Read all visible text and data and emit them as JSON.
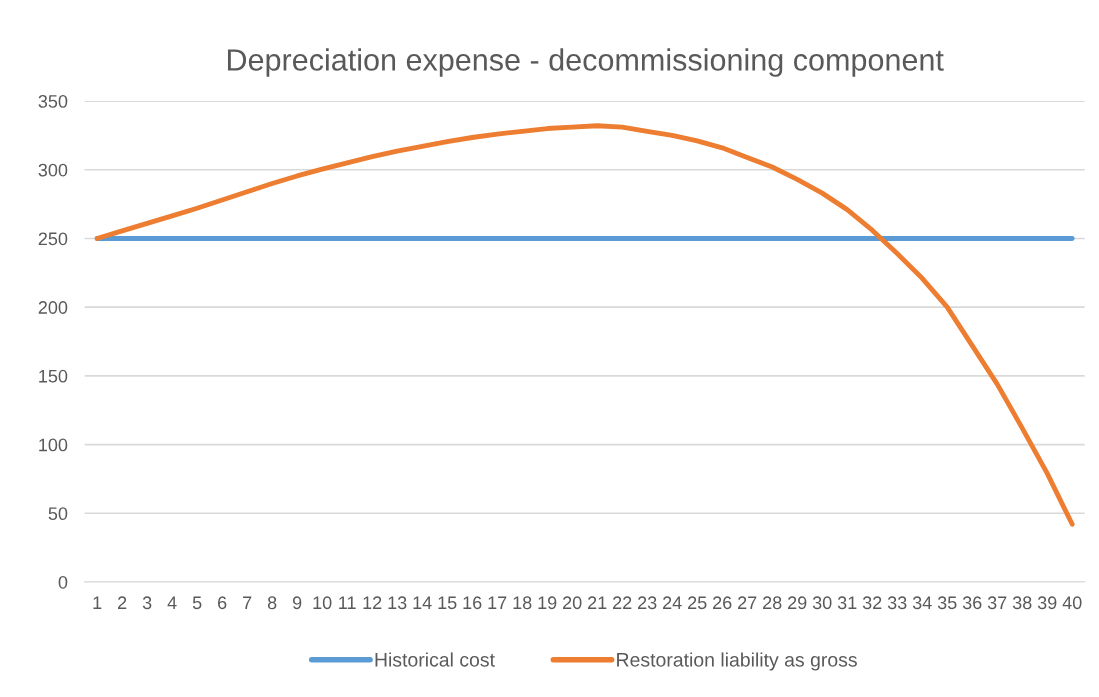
{
  "chart_data": {
    "type": "line",
    "title": "Depreciation expense - decommissioning component",
    "categories": [
      "1",
      "2",
      "3",
      "4",
      "5",
      "6",
      "7",
      "8",
      "9",
      "10",
      "11",
      "12",
      "13",
      "14",
      "15",
      "16",
      "17",
      "18",
      "19",
      "20",
      "21",
      "22",
      "23",
      "24",
      "25",
      "26",
      "27",
      "28",
      "29",
      "30",
      "31",
      "32",
      "33",
      "34",
      "35",
      "36",
      "37",
      "38",
      "39",
      "40"
    ],
    "series": [
      {
        "name": "Historical cost",
        "color": "#5b9bd5",
        "values": [
          250,
          250,
          250,
          250,
          250,
          250,
          250,
          250,
          250,
          250,
          250,
          250,
          250,
          250,
          250,
          250,
          250,
          250,
          250,
          250,
          250,
          250,
          250,
          250,
          250,
          250,
          250,
          250,
          250,
          250,
          250,
          250,
          250,
          250,
          250,
          250,
          250,
          250,
          250,
          250
        ]
      },
      {
        "name": "Restoration liability as gross",
        "color": "#ed7d31",
        "values": [
          250,
          255.5,
          261,
          266.5,
          272,
          278,
          284,
          290,
          295.5,
          300.5,
          305,
          309.5,
          313.5,
          317,
          320.5,
          323.5,
          326,
          328,
          330,
          331,
          332,
          331,
          328,
          325,
          321,
          316,
          309,
          302,
          293,
          283,
          271,
          256,
          239,
          221,
          200,
          172,
          144,
          112,
          79,
          42
        ]
      }
    ],
    "ylim": [
      0,
      350
    ],
    "yticks": [
      0,
      50,
      100,
      150,
      200,
      250,
      300,
      350
    ],
    "grid": "y",
    "legend": "bottom",
    "marker": "none",
    "line_style": "solid"
  }
}
